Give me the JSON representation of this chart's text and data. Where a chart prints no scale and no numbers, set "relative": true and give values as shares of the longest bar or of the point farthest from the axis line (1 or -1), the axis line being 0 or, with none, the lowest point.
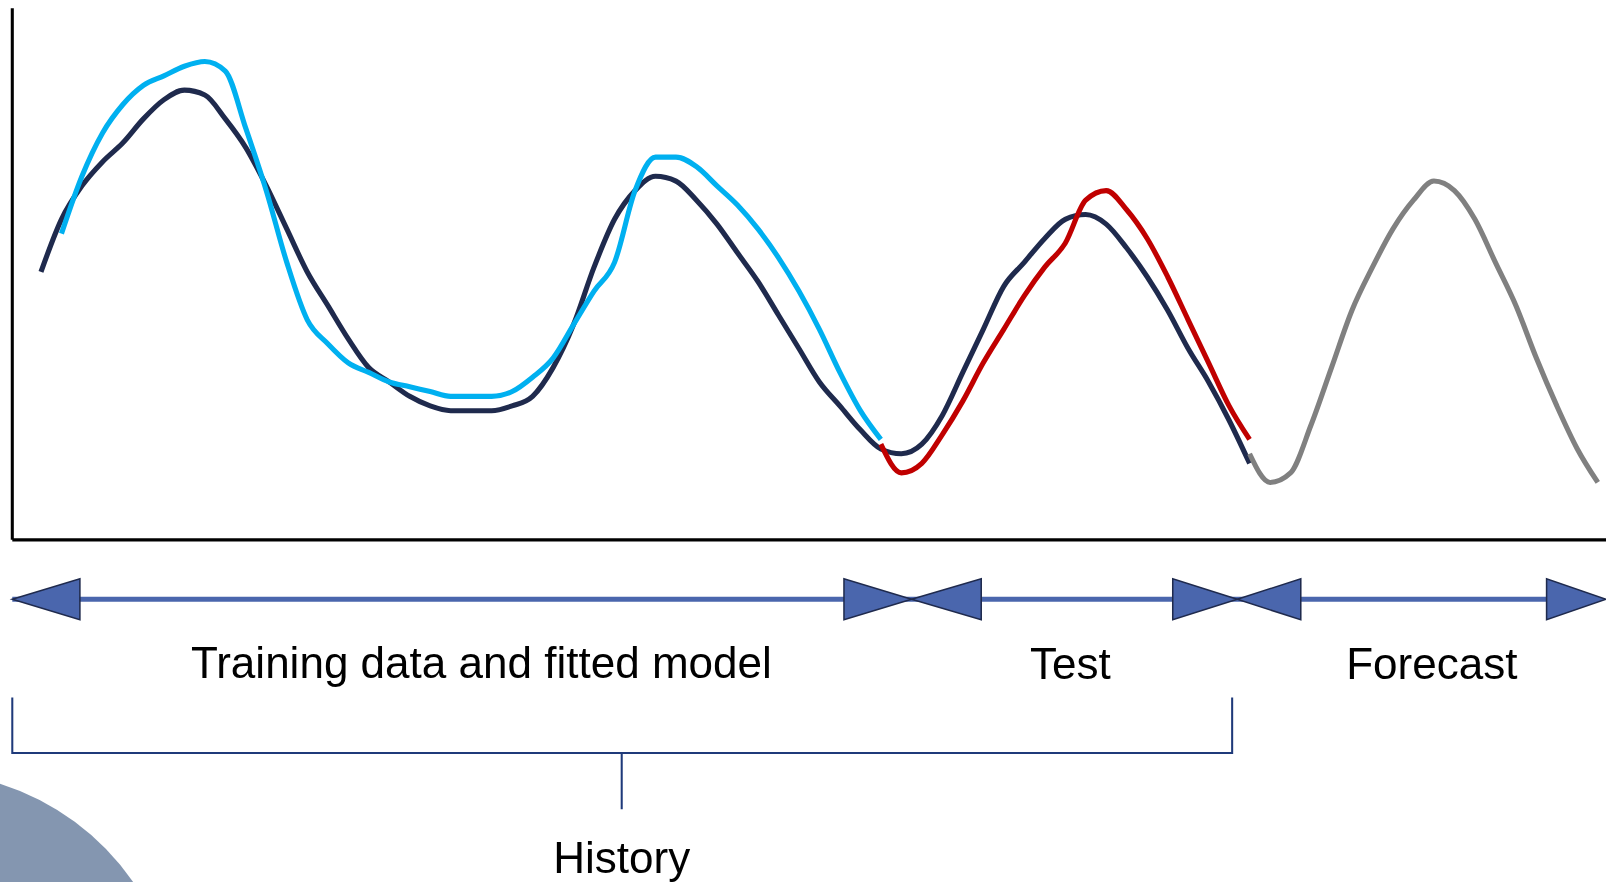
{
  "chart_data": {
    "type": "line",
    "relative": true,
    "line_style": "solid",
    "marker": "none",
    "categories": [
      null,
      null,
      null,
      null,
      null,
      null,
      null,
      null,
      null,
      null,
      null,
      null,
      null,
      null,
      null,
      null,
      null,
      null,
      null,
      null,
      null,
      null,
      null,
      null,
      null,
      null,
      null,
      null,
      null,
      null,
      null,
      null,
      null,
      null,
      null,
      null,
      null,
      null,
      null,
      null,
      null,
      null,
      null,
      null,
      null,
      null,
      null,
      null,
      null,
      null,
      null,
      null,
      null,
      null,
      null,
      null,
      null,
      null,
      null,
      null,
      null,
      null,
      null,
      null,
      null,
      null,
      null,
      null,
      null,
      null,
      null,
      null,
      null,
      null,
      null,
      null,
      null
    ],
    "series": [
      {
        "color": "#1f2a4d",
        "values": [
          0.56,
          0.67,
          0.74,
          0.79,
          0.83,
          0.88,
          0.92,
          0.94,
          0.93,
          0.88,
          0.82,
          0.74,
          0.65,
          0.56,
          0.49,
          0.42,
          0.36,
          0.33,
          0.3,
          0.28,
          0.27,
          0.27,
          0.27,
          0.28,
          0.3,
          0.36,
          0.45,
          0.57,
          0.67,
          0.73,
          0.76,
          0.75,
          0.71,
          0.66,
          0.6,
          0.54,
          0.47,
          0.4,
          0.33,
          0.28,
          0.23,
          0.19,
          0.18,
          0.2,
          0.26,
          0.35,
          0.44,
          0.53,
          0.58,
          0.63,
          0.67,
          0.68,
          0.66,
          0.61,
          0.55,
          0.48,
          0.4,
          0.33,
          0.25,
          0.16,
          null,
          null,
          null,
          null,
          null,
          null,
          null,
          null,
          null,
          null,
          null,
          null,
          null,
          null,
          null,
          null,
          null
        ]
      },
      {
        "color": "#00b0f0",
        "values": [
          null,
          0.64,
          0.76,
          0.85,
          0.91,
          0.95,
          0.97,
          0.99,
          1,
          0.98,
          0.86,
          0.73,
          0.58,
          0.46,
          0.41,
          0.37,
          0.35,
          0.33,
          0.32,
          0.31,
          0.3,
          0.3,
          0.3,
          0.31,
          0.34,
          0.38,
          0.45,
          0.52,
          0.58,
          0.73,
          0.8,
          0.8,
          0.78,
          0.74,
          0.7,
          0.65,
          0.59,
          0.52,
          0.44,
          0.35,
          0.27,
          0.21,
          null,
          null,
          null,
          null,
          null,
          null,
          null,
          null,
          null,
          null,
          null,
          null,
          null,
          null,
          null,
          null,
          null,
          null,
          null,
          null,
          null,
          null,
          null,
          null,
          null,
          null,
          null,
          null,
          null,
          null,
          null,
          null,
          null,
          null,
          null
        ]
      },
      {
        "color": "#c00000",
        "values": [
          null,
          null,
          null,
          null,
          null,
          null,
          null,
          null,
          null,
          null,
          null,
          null,
          null,
          null,
          null,
          null,
          null,
          null,
          null,
          null,
          null,
          null,
          null,
          null,
          null,
          null,
          null,
          null,
          null,
          null,
          null,
          null,
          null,
          null,
          null,
          null,
          null,
          null,
          null,
          null,
          null,
          0.2,
          0.14,
          0.16,
          0.22,
          0.29,
          0.37,
          0.44,
          0.51,
          0.57,
          0.62,
          0.71,
          0.73,
          0.69,
          0.63,
          0.55,
          0.46,
          0.37,
          0.28,
          0.21,
          null,
          null,
          null,
          null,
          null,
          null,
          null,
          null,
          null,
          null,
          null,
          null,
          null,
          null,
          null,
          null,
          null
        ]
      },
      {
        "color": "#808080",
        "values": [
          null,
          null,
          null,
          null,
          null,
          null,
          null,
          null,
          null,
          null,
          null,
          null,
          null,
          null,
          null,
          null,
          null,
          null,
          null,
          null,
          null,
          null,
          null,
          null,
          null,
          null,
          null,
          null,
          null,
          null,
          null,
          null,
          null,
          null,
          null,
          null,
          null,
          null,
          null,
          null,
          null,
          null,
          null,
          null,
          null,
          null,
          null,
          null,
          null,
          null,
          null,
          null,
          null,
          null,
          null,
          null,
          null,
          null,
          null,
          0.18,
          0.12,
          0.14,
          0.24,
          0.36,
          0.48,
          0.57,
          0.65,
          0.71,
          0.75,
          0.73,
          0.67,
          0.58,
          0.49,
          0.38,
          0.28,
          0.19,
          0.12
        ]
      }
    ],
    "annotations": [
      "Training data and fitted model",
      "Test",
      "Forecast",
      "History"
    ]
  }
}
